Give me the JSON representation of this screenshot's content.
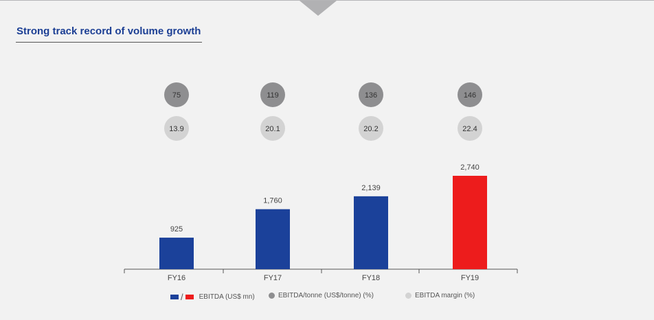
{
  "title": "Strong track record of volume growth",
  "chart_data": {
    "type": "bar",
    "title": "Strong track record of volume growth",
    "categories": [
      "FY16",
      "FY17",
      "FY18",
      "FY19"
    ],
    "series": [
      {
        "name": "EBITDA (US$ mn)",
        "values": [
          925,
          1760,
          2139,
          2740
        ],
        "labels": [
          "925",
          "1,760",
          "2,139",
          "2,740"
        ]
      },
      {
        "name": "EBITDA/tonne (US$/tonne) (%)",
        "values": [
          75,
          119,
          136,
          146
        ]
      },
      {
        "name": "EBITDA margin (%)",
        "values": [
          13.9,
          20.1,
          20.2,
          22.4
        ]
      }
    ],
    "colors": {
      "bar": "#1b419a",
      "bar_highlight": "#ed1c1c",
      "per_tonne": "#8e8e90",
      "margin": "#d3d3d3"
    },
    "highlight_index": 3,
    "legend": {
      "bar": "EBITDA (US$ mn)",
      "per_tonne": "EBITDA/tonne (US$/tonne) (%)",
      "margin": "EBITDA margin (%)",
      "slash": "/"
    },
    "legend_position": "bottom",
    "ylim": [
      0,
      2740
    ]
  }
}
